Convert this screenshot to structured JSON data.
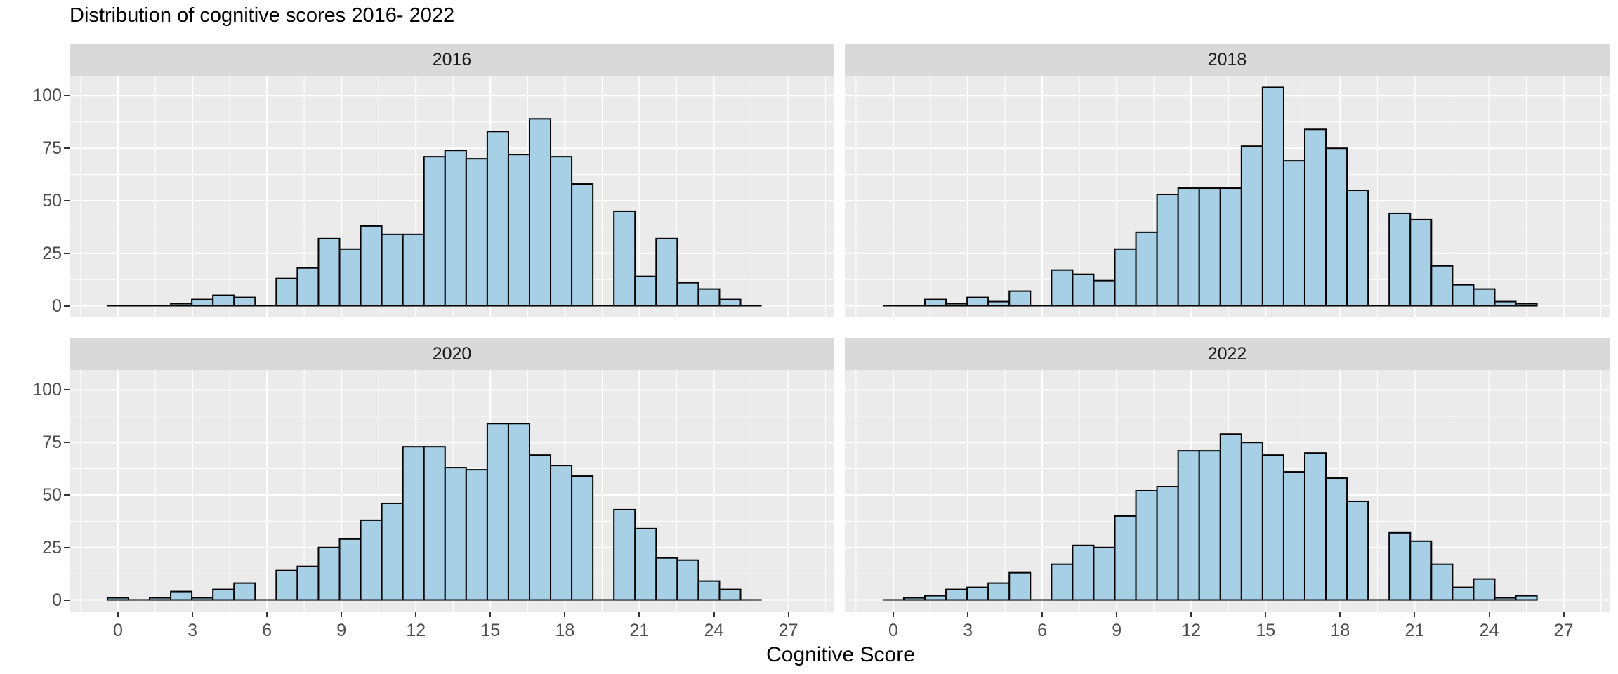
{
  "title": "Distribution of cognitive scores 2016- 2022",
  "x_axis_title": "Cognitive Score",
  "colors": {
    "bar_fill": "#a7d0e6",
    "bar_stroke": "#000000",
    "panel_bg": "#ebebeb",
    "strip_bg": "#d9d9d9",
    "grid": "#ffffff",
    "tick_label": "#4d4d4d",
    "strip_label": "#1a1a1a",
    "title_color": "#000000",
    "axis_title_color": "#000000",
    "tick_mark": "#333333"
  },
  "x_ticks": [
    0,
    3,
    6,
    9,
    12,
    15,
    18,
    21,
    24,
    27
  ],
  "y_ticks": [
    0,
    25,
    50,
    75,
    100
  ],
  "chart_data": {
    "type": "histogram",
    "title": "Distribution of cognitive scores 2016- 2022",
    "xlabel": "Cognitive Score",
    "ylabel": "",
    "facet_variable": "year",
    "facet_layout": "2x2",
    "binwidth": 0.85,
    "first_bin_center": 0,
    "x_domain": [
      -1.95,
      28.85
    ],
    "y_domain": [
      -5.5,
      109.5
    ],
    "x_tick_values": [
      0,
      3,
      6,
      9,
      12,
      15,
      18,
      21,
      24,
      27
    ],
    "y_tick_values": [
      0,
      25,
      50,
      75,
      100
    ],
    "grid": "on",
    "facets": [
      {
        "label": "2016",
        "counts": [
          0,
          0,
          0,
          1,
          3,
          5,
          4,
          0,
          13,
          18,
          32,
          27,
          38,
          34,
          34,
          71,
          74,
          70,
          83,
          72,
          89,
          71,
          58,
          0,
          45,
          14,
          32,
          11,
          8,
          3,
          0
        ]
      },
      {
        "label": "2018",
        "counts": [
          0,
          0,
          3,
          1,
          4,
          2,
          7,
          0,
          17,
          15,
          12,
          27,
          35,
          53,
          56,
          56,
          56,
          76,
          104,
          69,
          84,
          75,
          55,
          0,
          44,
          41,
          19,
          10,
          8,
          2,
          1
        ]
      },
      {
        "label": "2020",
        "counts": [
          1,
          0,
          1,
          4,
          1,
          5,
          8,
          0,
          14,
          16,
          25,
          29,
          38,
          46,
          73,
          73,
          63,
          62,
          84,
          84,
          69,
          64,
          59,
          0,
          43,
          34,
          20,
          19,
          9,
          5,
          0
        ]
      },
      {
        "label": "2022",
        "counts": [
          0,
          1,
          2,
          5,
          6,
          8,
          13,
          0,
          17,
          26,
          25,
          40,
          52,
          54,
          71,
          71,
          79,
          75,
          69,
          61,
          70,
          58,
          47,
          0,
          32,
          28,
          17,
          6,
          10,
          1,
          2
        ]
      }
    ]
  }
}
